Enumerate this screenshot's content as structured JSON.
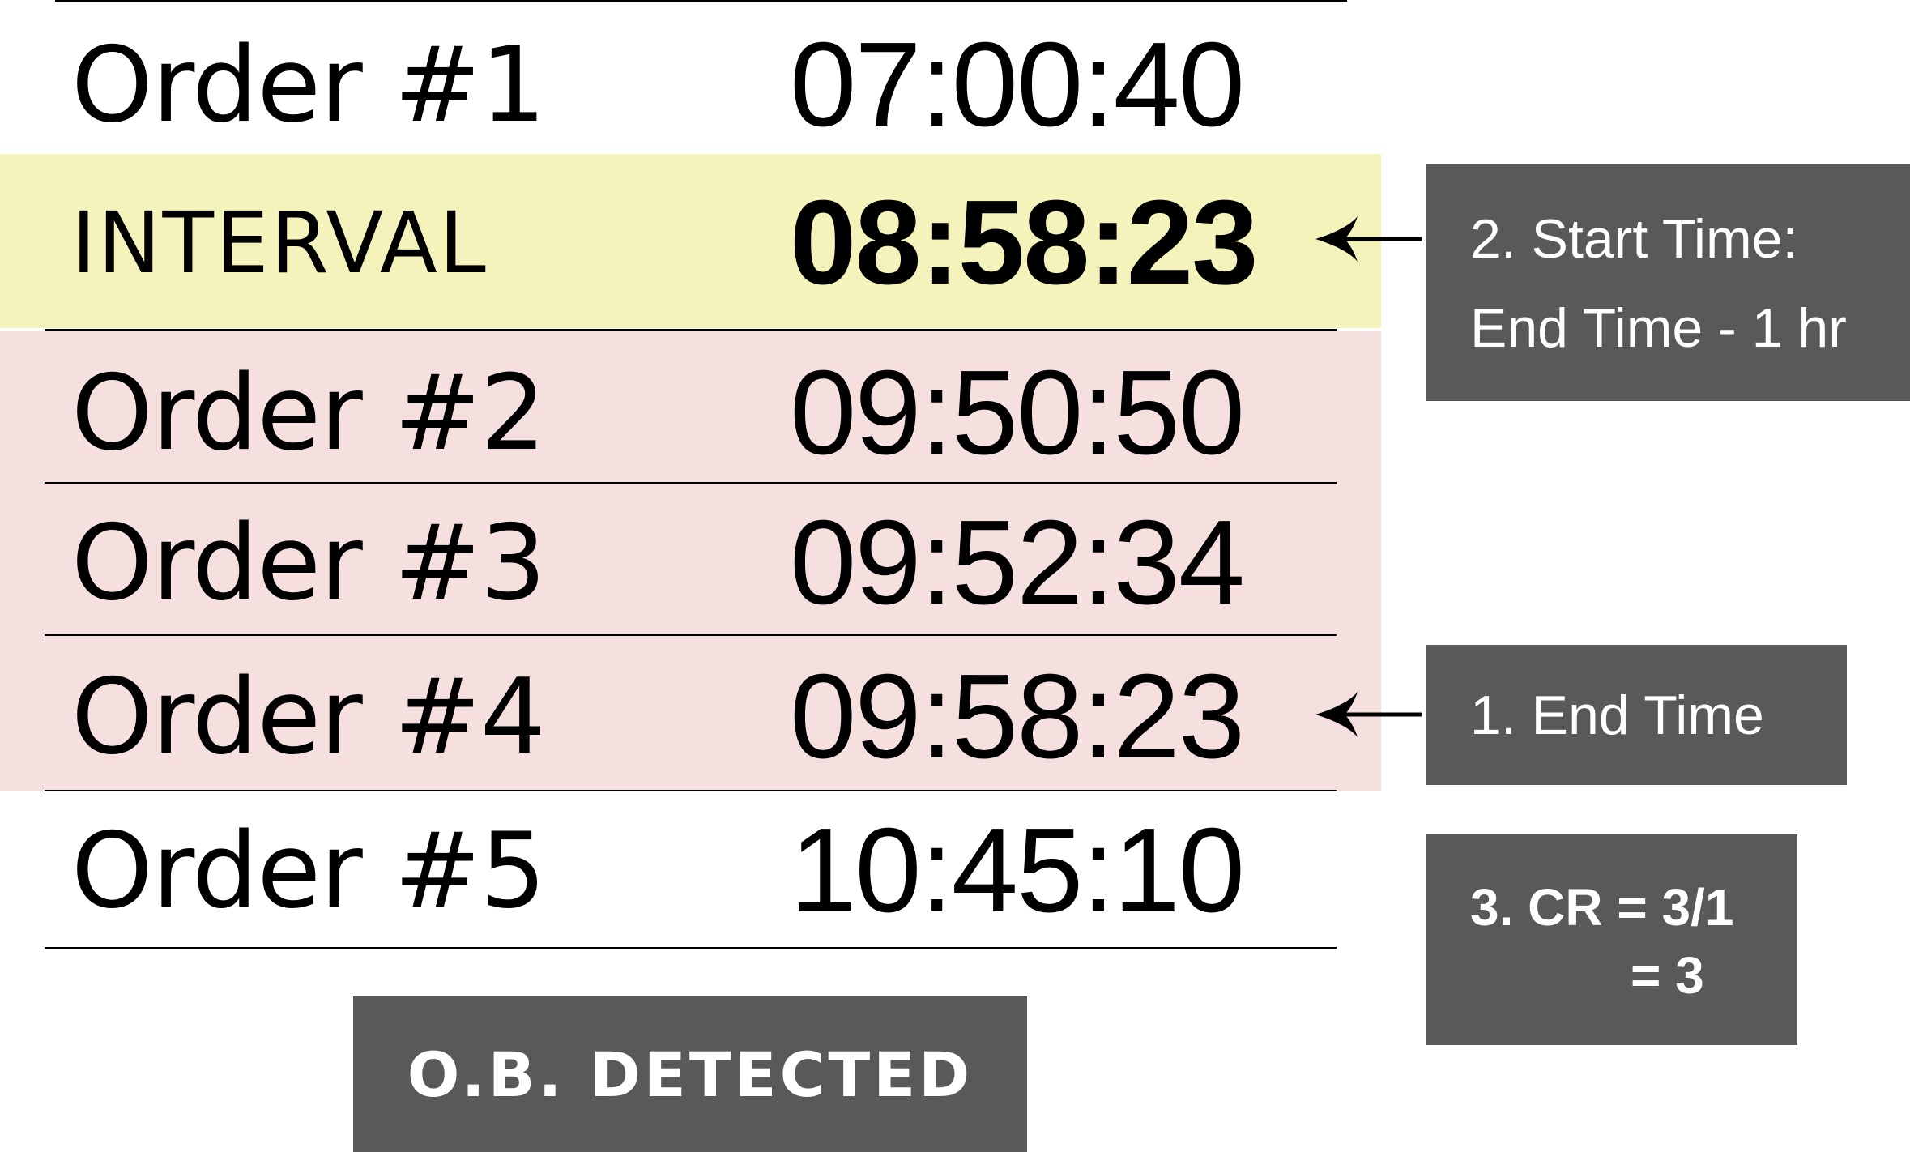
{
  "colors": {
    "interval_band": "#f4f3bb",
    "detected_band": "#f5e0df",
    "callout_bg": "#595959",
    "text": "#000000",
    "callout_text": "#ffffff",
    "rule": "#000000"
  },
  "rows": [
    {
      "label": "Order #1",
      "time": "07:00:40"
    },
    {
      "label": "INTERVAL",
      "time": "08:58:23"
    },
    {
      "label": "Order #2",
      "time": "09:50:50"
    },
    {
      "label": "Order #3",
      "time": "09:52:34"
    },
    {
      "label": "Order #4",
      "time": "09:58:23"
    },
    {
      "label": "Order #5",
      "time": "10:45:10"
    }
  ],
  "callouts": {
    "start_time": {
      "line1": "2. Start Time:",
      "line2": "End Time - 1 hr"
    },
    "end_time": {
      "line1": "1. End Time"
    },
    "cr": {
      "line1": "3. CR = 3/1",
      "line2": "= 3"
    }
  },
  "stamp": {
    "text": "O.B. DETECTED"
  },
  "icons": {
    "arrow": "left-arrow-icon"
  }
}
